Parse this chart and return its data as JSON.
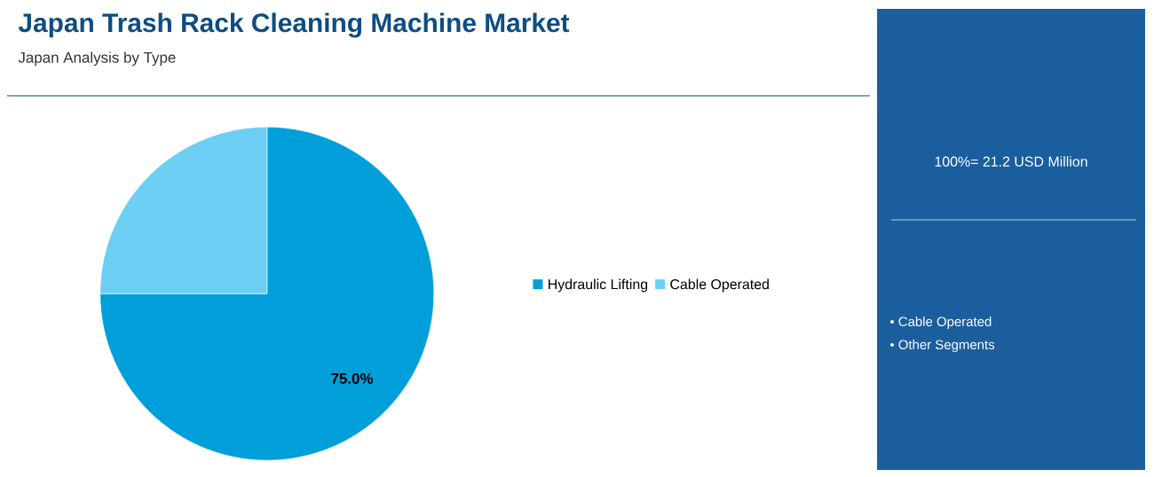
{
  "chart_data": {
    "type": "pie",
    "title": "Japan Trash Rack Cleaning Machine Market",
    "subtitle": "Japan Analysis by Type",
    "categories": [
      "Hydraulic Lifting",
      "Cable Operated"
    ],
    "values": [
      75.0,
      25.0
    ],
    "colors": [
      "#009fd9",
      "#6ccef3"
    ],
    "value_labels": [
      "75.0%",
      null
    ],
    "legend": "right",
    "annotations": [
      "100%= 21.2 USD Million",
      "• Cable Operated",
      "• Other Segments"
    ]
  }
}
